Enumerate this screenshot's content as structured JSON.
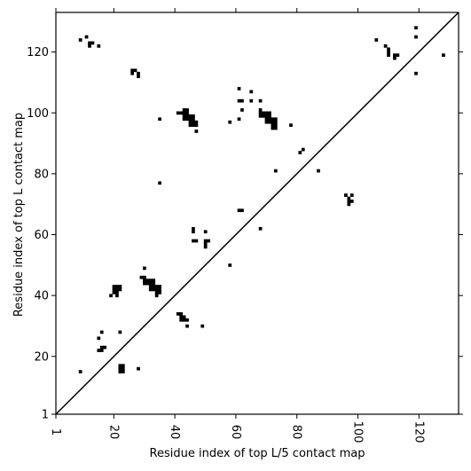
{
  "chart_data": {
    "type": "heatmap",
    "title": "",
    "xlabel": "Residue index of top L/5 contact map",
    "ylabel": "Residue index of top L contact map",
    "xlim": [
      1,
      133
    ],
    "ylim": [
      1,
      133
    ],
    "x_ticks": [
      1,
      20,
      40,
      60,
      80,
      100,
      120
    ],
    "y_ticks": [
      1,
      20,
      40,
      60,
      80,
      100,
      120
    ],
    "diagonal": true,
    "cell_color": "#000000",
    "background_color": "#ffffff",
    "upper_triangle_contacts": [
      [
        9,
        124
      ],
      [
        11,
        125
      ],
      [
        12,
        123
      ],
      [
        13,
        123
      ],
      [
        12,
        122
      ],
      [
        15,
        122
      ],
      [
        26,
        114
      ],
      [
        27,
        114
      ],
      [
        26,
        113
      ],
      [
        28,
        113
      ],
      [
        28,
        112
      ],
      [
        35,
        98
      ],
      [
        41,
        100
      ],
      [
        42,
        100
      ],
      [
        43,
        101
      ],
      [
        44,
        101
      ],
      [
        43,
        100
      ],
      [
        44,
        100
      ],
      [
        43,
        99
      ],
      [
        44,
        99
      ],
      [
        45,
        99
      ],
      [
        46,
        99
      ],
      [
        43,
        98
      ],
      [
        44,
        98
      ],
      [
        45,
        98
      ],
      [
        46,
        98
      ],
      [
        45,
        97
      ],
      [
        46,
        97
      ],
      [
        47,
        97
      ],
      [
        45,
        96
      ],
      [
        46,
        96
      ],
      [
        47,
        96
      ],
      [
        47,
        94
      ],
      [
        58,
        97
      ],
      [
        61,
        98
      ],
      [
        61,
        104
      ],
      [
        62,
        104
      ],
      [
        62,
        101
      ],
      [
        61,
        108
      ],
      [
        65,
        107
      ],
      [
        65,
        104
      ],
      [
        68,
        104
      ],
      [
        68,
        101
      ],
      [
        68,
        100
      ],
      [
        69,
        100
      ],
      [
        70,
        100
      ],
      [
        71,
        100
      ],
      [
        68,
        99
      ],
      [
        69,
        99
      ],
      [
        70,
        99
      ],
      [
        71,
        99
      ],
      [
        70,
        98
      ],
      [
        71,
        98
      ],
      [
        72,
        98
      ],
      [
        73,
        98
      ],
      [
        70,
        97
      ],
      [
        71,
        97
      ],
      [
        72,
        97
      ],
      [
        73,
        97
      ],
      [
        72,
        96
      ],
      [
        73,
        96
      ],
      [
        72,
        95
      ],
      [
        73,
        95
      ],
      [
        78,
        96
      ],
      [
        73,
        81
      ],
      [
        81,
        87
      ],
      [
        82,
        88
      ],
      [
        87,
        81
      ],
      [
        35,
        77
      ],
      [
        61,
        68
      ],
      [
        62,
        68
      ],
      [
        68,
        62
      ],
      [
        96,
        73
      ],
      [
        98,
        73
      ],
      [
        97,
        72
      ],
      [
        97,
        71
      ],
      [
        98,
        71
      ],
      [
        97,
        70
      ],
      [
        106,
        124
      ],
      [
        109,
        122
      ],
      [
        110,
        121
      ],
      [
        110,
        120
      ],
      [
        110,
        119
      ],
      [
        112,
        119
      ],
      [
        113,
        119
      ],
      [
        112,
        118
      ],
      [
        119,
        128
      ],
      [
        119,
        125
      ],
      [
        119,
        113
      ],
      [
        128,
        119
      ]
    ],
    "lower_triangle_contacts": [
      [
        46,
        62
      ],
      [
        46,
        61
      ],
      [
        50,
        61
      ],
      [
        46,
        58
      ],
      [
        47,
        58
      ],
      [
        50,
        58
      ],
      [
        51,
        58
      ],
      [
        50,
        57
      ],
      [
        50,
        56
      ],
      [
        58,
        50
      ],
      [
        30,
        49
      ],
      [
        29,
        46
      ],
      [
        30,
        46
      ],
      [
        30,
        45
      ],
      [
        31,
        45
      ],
      [
        32,
        45
      ],
      [
        33,
        45
      ],
      [
        30,
        44
      ],
      [
        31,
        44
      ],
      [
        32,
        44
      ],
      [
        33,
        44
      ],
      [
        32,
        43
      ],
      [
        33,
        43
      ],
      [
        34,
        43
      ],
      [
        35,
        43
      ],
      [
        32,
        42
      ],
      [
        33,
        42
      ],
      [
        34,
        42
      ],
      [
        35,
        42
      ],
      [
        34,
        41
      ],
      [
        35,
        41
      ],
      [
        34,
        40
      ],
      [
        20,
        43
      ],
      [
        21,
        43
      ],
      [
        22,
        43
      ],
      [
        20,
        42
      ],
      [
        21,
        42
      ],
      [
        22,
        42
      ],
      [
        20,
        41
      ],
      [
        21,
        41
      ],
      [
        19,
        40
      ],
      [
        21,
        40
      ],
      [
        41,
        34
      ],
      [
        42,
        34
      ],
      [
        42,
        33
      ],
      [
        43,
        33
      ],
      [
        42,
        32
      ],
      [
        43,
        32
      ],
      [
        44,
        32
      ],
      [
        44,
        30
      ],
      [
        49,
        30
      ],
      [
        16,
        28
      ],
      [
        22,
        28
      ],
      [
        15,
        26
      ],
      [
        16,
        23
      ],
      [
        17,
        23
      ],
      [
        15,
        22
      ],
      [
        16,
        22
      ],
      [
        22,
        17
      ],
      [
        23,
        17
      ],
      [
        22,
        16
      ],
      [
        23,
        16
      ],
      [
        22,
        15
      ],
      [
        23,
        15
      ],
      [
        28,
        16
      ],
      [
        9,
        15
      ]
    ]
  }
}
